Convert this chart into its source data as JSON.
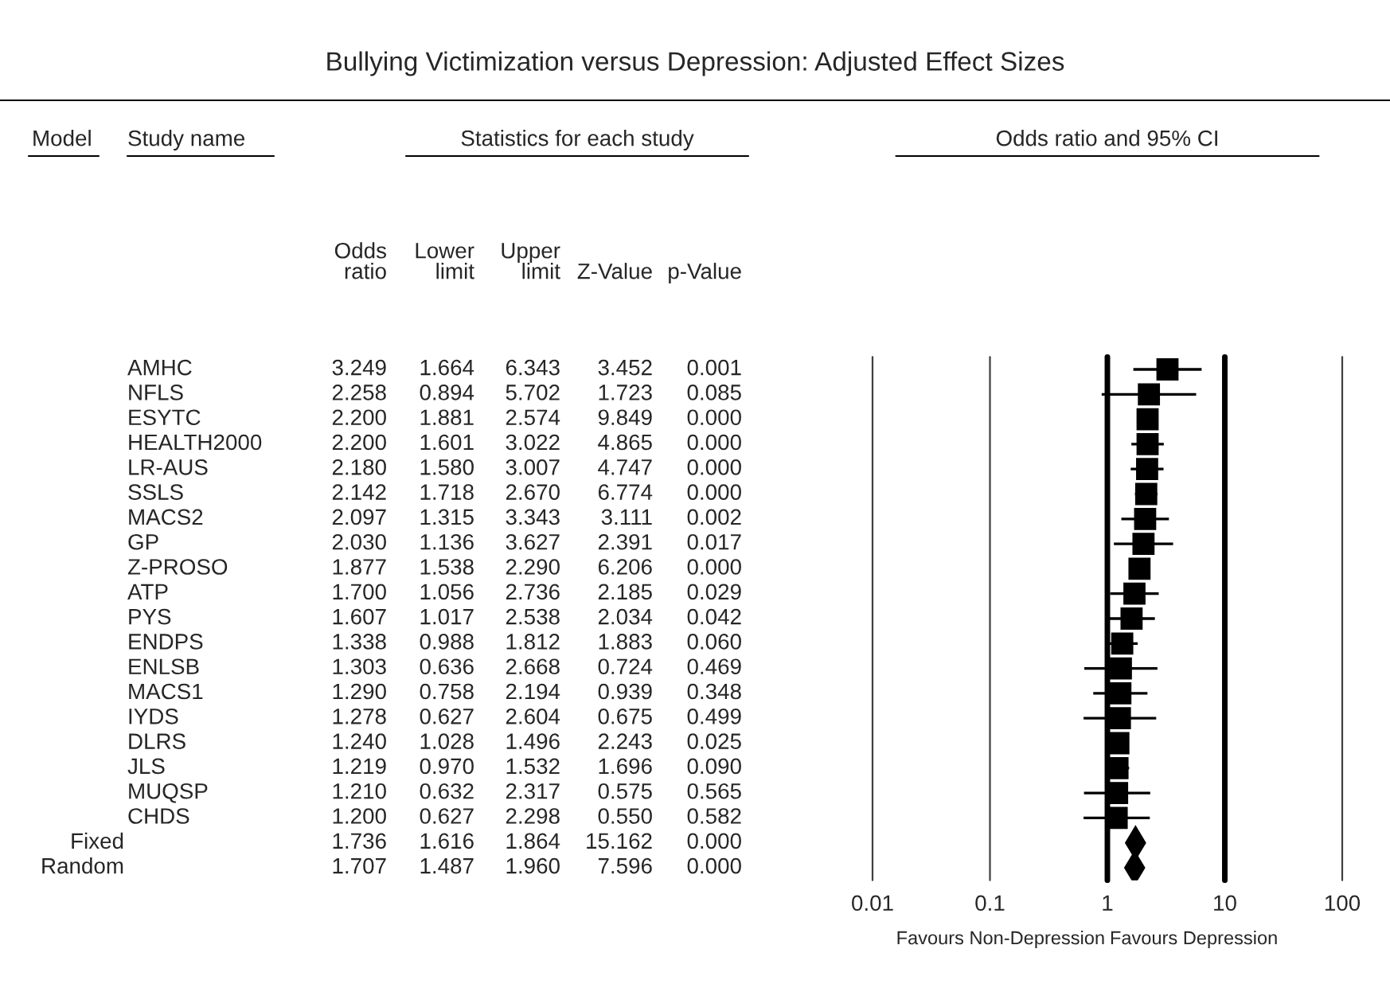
{
  "chart_data": [
    {
      "type": "other",
      "title": "Bullying Victimization versus Depression: Adjusted Effect Sizes",
      "annotations": [
        "Model",
        "Study name",
        "Statistics for each study"
      ],
      "categories": [
        "AMHC",
        "NFLS",
        "ESYTC",
        "HEALTH2000",
        "LR-AUS",
        "SSLS",
        "MACS2",
        "GP",
        "Z-PROSO",
        "ATP",
        "PYS",
        "ENDPS",
        "ENLSB",
        "MACS1",
        "IYDS",
        "DLRS",
        "JLS",
        "MUQSP",
        "CHDS",
        "Fixed",
        "Random"
      ],
      "series": [
        {
          "name": "Odds ratio",
          "values": [
            3.249,
            2.258,
            2.2,
            2.2,
            2.18,
            2.142,
            2.097,
            2.03,
            1.877,
            1.7,
            1.607,
            1.338,
            1.303,
            1.29,
            1.278,
            1.24,
            1.219,
            1.21,
            1.2,
            1.736,
            1.707
          ],
          "value_labels": [
            "3.249",
            "2.258",
            "2.200",
            "2.200",
            "2.180",
            "2.142",
            "2.097",
            "2.030",
            "1.877",
            "1.700",
            "1.607",
            "1.338",
            "1.303",
            "1.290",
            "1.278",
            "1.240",
            "1.219",
            "1.210",
            "1.200",
            "1.736",
            "1.707"
          ]
        },
        {
          "name": "Lower limit",
          "values": [
            1.664,
            0.894,
            1.881,
            1.601,
            1.58,
            1.718,
            1.315,
            1.136,
            1.538,
            1.056,
            1.017,
            0.988,
            0.636,
            0.758,
            0.627,
            1.028,
            0.97,
            0.632,
            0.627,
            1.616,
            1.487
          ],
          "value_labels": [
            "1.664",
            "0.894",
            "1.881",
            "1.601",
            "1.580",
            "1.718",
            "1.315",
            "1.136",
            "1.538",
            "1.056",
            "1.017",
            "0.988",
            "0.636",
            "0.758",
            "0.627",
            "1.028",
            "0.970",
            "0.632",
            "0.627",
            "1.616",
            "1.487"
          ]
        },
        {
          "name": "Upper limit",
          "values": [
            6.343,
            5.702,
            2.574,
            3.022,
            3.007,
            2.67,
            3.343,
            3.627,
            2.29,
            2.736,
            2.538,
            1.812,
            2.668,
            2.194,
            2.604,
            1.496,
            1.532,
            2.317,
            2.298,
            1.864,
            1.96
          ],
          "value_labels": [
            "6.343",
            "5.702",
            "2.574",
            "3.022",
            "3.007",
            "2.670",
            "3.343",
            "3.627",
            "2.290",
            "2.736",
            "2.538",
            "1.812",
            "2.668",
            "2.194",
            "2.604",
            "1.496",
            "1.532",
            "2.317",
            "2.298",
            "1.864",
            "1.960"
          ]
        },
        {
          "name": "Z-Value",
          "values": [
            3.452,
            1.723,
            9.849,
            4.865,
            4.747,
            6.774,
            3.111,
            2.391,
            6.206,
            2.185,
            2.034,
            1.883,
            0.724,
            0.939,
            0.675,
            2.243,
            1.696,
            0.575,
            0.55,
            15.162,
            7.596
          ],
          "value_labels": [
            "3.452",
            "1.723",
            "9.849",
            "4.865",
            "4.747",
            "6.774",
            "3.111",
            "2.391",
            "6.206",
            "2.185",
            "2.034",
            "1.883",
            "0.724",
            "0.939",
            "0.675",
            "2.243",
            "1.696",
            "0.575",
            "0.550",
            "15.162",
            "7.596"
          ]
        },
        {
          "name": "p-Value",
          "values": [
            0.001,
            0.085,
            0,
            0,
            0,
            0,
            0.002,
            0.017,
            0,
            0.029,
            0.042,
            0.06,
            0.469,
            0.348,
            0.499,
            0.025,
            0.09,
            0.565,
            0.582,
            0,
            0
          ],
          "value_labels": [
            "0.001",
            "0.085",
            "0.000",
            "0.000",
            "0.000",
            "0.000",
            "0.002",
            "0.017",
            "0.000",
            "0.029",
            "0.042",
            "0.060",
            "0.469",
            "0.348",
            "0.499",
            "0.025",
            "0.090",
            "0.565",
            "0.582",
            "0.000",
            "0.000"
          ]
        }
      ]
    },
    {
      "type": "scatter",
      "title": "Odds ratio and 95% CI",
      "orientation": "horizontal",
      "log": "x",
      "tick_labels": "x",
      "categories": [
        null,
        null,
        null,
        null,
        null,
        null,
        null,
        null,
        null,
        null,
        null,
        null,
        null,
        null,
        null,
        null,
        null,
        null,
        null,
        null,
        null
      ],
      "xlim": [
        0.01,
        100
      ],
      "xticks": [
        0.01,
        0.1,
        1,
        10,
        100
      ],
      "annotations": [
        "Favours Non-Depression",
        "Favours Depression"
      ],
      "ref_lines": [
        {
          "axis": "x",
          "value": 0.01,
          "label": null,
          "color": "#404040"
        },
        {
          "axis": "x",
          "value": 0.1,
          "label": null,
          "color": "#404040"
        },
        {
          "axis": "x",
          "value": 1,
          "label": null
        },
        {
          "axis": "x",
          "value": 10,
          "label": null
        },
        {
          "axis": "x",
          "value": 100,
          "label": null,
          "color": "#404040"
        }
      ],
      "series": [
        {
          "color": "#000000",
          "marker": "square",
          "values": [
            3.249,
            2.258,
            2.2,
            2.2,
            2.18,
            2.142,
            2.097,
            2.03,
            1.877,
            1.7,
            1.607,
            1.338,
            1.303,
            1.29,
            1.278,
            1.24,
            1.219,
            1.21,
            1.2,
            null,
            null
          ],
          "errors": [
            [
              1.664,
              6.343
            ],
            [
              0.894,
              5.702
            ],
            [
              1.881,
              2.574
            ],
            [
              1.601,
              3.022
            ],
            [
              1.58,
              3.007
            ],
            [
              1.718,
              2.67
            ],
            [
              1.315,
              3.343
            ],
            [
              1.136,
              3.627
            ],
            [
              1.538,
              2.29
            ],
            [
              1.056,
              2.736
            ],
            [
              1.017,
              2.538
            ],
            [
              0.988,
              1.812
            ],
            [
              0.636,
              2.668
            ],
            [
              0.758,
              2.194
            ],
            [
              0.627,
              2.604
            ],
            [
              1.028,
              1.496
            ],
            [
              0.97,
              1.532
            ],
            [
              0.632,
              2.317
            ],
            [
              0.627,
              2.298
            ],
            null,
            null
          ]
        },
        {
          "color": "#000000",
          "marker": "diamond",
          "values": [
            null,
            null,
            null,
            null,
            null,
            null,
            null,
            null,
            null,
            null,
            null,
            null,
            null,
            null,
            null,
            null,
            null,
            null,
            null,
            1.736,
            1.707
          ],
          "errors": [
            null,
            null,
            null,
            null,
            null,
            null,
            null,
            null,
            null,
            null,
            null,
            null,
            null,
            null,
            null,
            null,
            null,
            null,
            null,
            [
              1.616,
              1.864
            ],
            [
              1.487,
              1.96
            ]
          ]
        }
      ]
    }
  ]
}
